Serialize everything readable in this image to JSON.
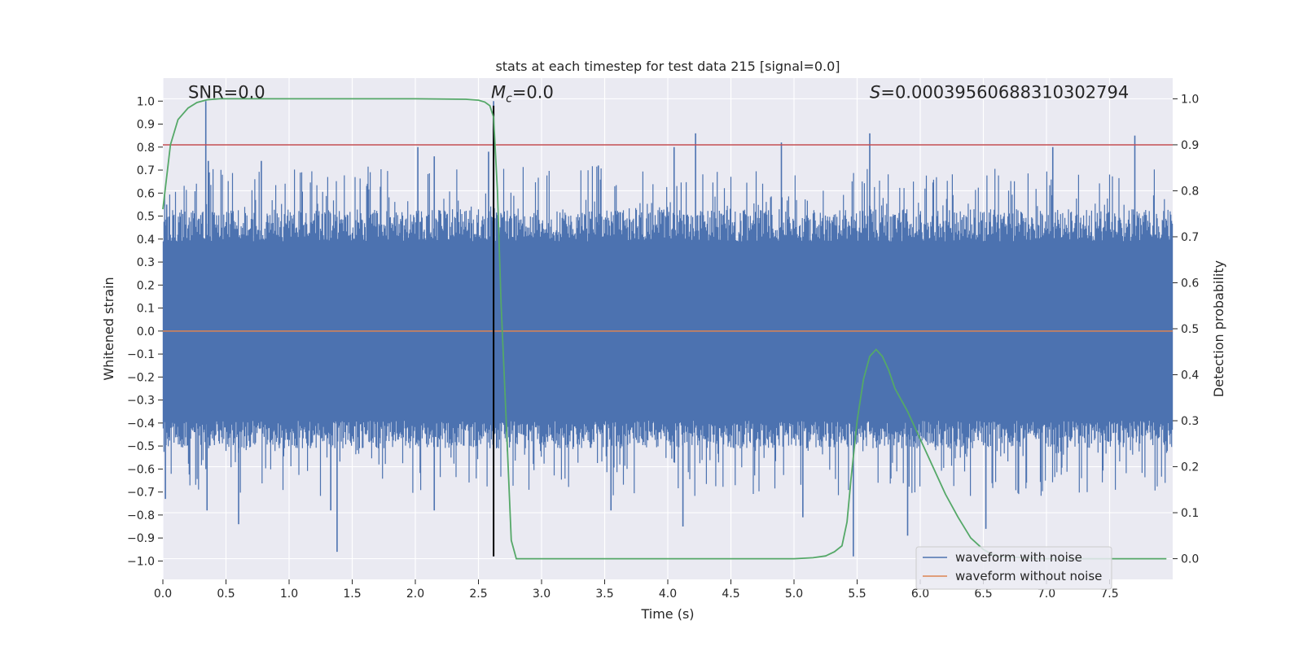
{
  "chart_data": {
    "type": "line",
    "title": "stats at each timestep for test data 215 [signal=0.0]",
    "xlabel": "Time (s)",
    "ylabel": "Whitened strain",
    "y2label": "Detection probability",
    "xlim": [
      0.0,
      8.0
    ],
    "ylim": [
      -1.08,
      1.1
    ],
    "y2lim": [
      -0.045,
      1.045
    ],
    "xticks": [
      0.0,
      0.5,
      1.0,
      1.5,
      2.0,
      2.5,
      3.0,
      3.5,
      4.0,
      4.5,
      5.0,
      5.5,
      6.0,
      6.5,
      7.0,
      7.5
    ],
    "xtick_labels": [
      "0.0",
      "0.5",
      "1.0",
      "1.5",
      "2.0",
      "2.5",
      "3.0",
      "3.5",
      "4.0",
      "4.5",
      "5.0",
      "5.5",
      "6.0",
      "6.5",
      "7.0",
      "7.5"
    ],
    "yticks": [
      1.0,
      0.9,
      0.8,
      0.7,
      0.6,
      0.5,
      0.4,
      0.3,
      0.2,
      0.1,
      0.0,
      -0.1,
      -0.2,
      -0.3,
      -0.4,
      -0.5,
      -0.6,
      -0.7,
      -0.8,
      -0.9,
      -1.0
    ],
    "ytick_labels": [
      "1.0",
      "0.9",
      "0.8",
      "0.7",
      "0.6",
      "0.5",
      "0.4",
      "0.3",
      "0.2",
      "0.1",
      "0.0",
      "−0.1",
      "−0.2",
      "−0.3",
      "−0.4",
      "−0.5",
      "−0.6",
      "−0.7",
      "−0.8",
      "−0.9",
      "−1.0"
    ],
    "y2ticks": [
      1.0,
      0.9,
      0.8,
      0.7,
      0.6,
      0.5,
      0.4,
      0.3,
      0.2,
      0.1,
      0.0
    ],
    "y2tick_labels": [
      "1.0",
      "0.9",
      "0.8",
      "0.7",
      "0.6",
      "0.5",
      "0.4",
      "0.3",
      "0.2",
      "0.1",
      "0.0"
    ],
    "grid": true,
    "legend_position": "lower-right",
    "series": [
      {
        "name": "waveform with noise",
        "axis": "left",
        "color": "#4c72b0",
        "style": "noise-band",
        "dense_band": [
          -0.39,
          0.39
        ],
        "peaks": [
          {
            "x": 0.34,
            "y": 1.0
          },
          {
            "x": 0.36,
            "y": 0.74
          },
          {
            "x": 0.78,
            "y": 0.74
          },
          {
            "x": 2.02,
            "y": 0.8
          },
          {
            "x": 2.15,
            "y": 0.76
          },
          {
            "x": 2.58,
            "y": 0.78
          },
          {
            "x": 2.62,
            "y": 1.0
          },
          {
            "x": 3.45,
            "y": 0.72
          },
          {
            "x": 4.05,
            "y": 0.8
          },
          {
            "x": 4.22,
            "y": 0.86
          },
          {
            "x": 4.9,
            "y": 0.82
          },
          {
            "x": 5.6,
            "y": 0.86
          },
          {
            "x": 7.05,
            "y": 0.8
          },
          {
            "x": 7.7,
            "y": 0.85
          },
          {
            "x": 0.03,
            "y": 0.55
          },
          {
            "x": 0.6,
            "y": -0.84
          },
          {
            "x": 0.35,
            "y": -0.78
          },
          {
            "x": 1.38,
            "y": -0.96
          },
          {
            "x": 1.33,
            "y": -0.78
          },
          {
            "x": 2.15,
            "y": -0.78
          },
          {
            "x": 4.12,
            "y": -0.85
          },
          {
            "x": 3.55,
            "y": -0.78
          },
          {
            "x": 5.07,
            "y": -0.81
          },
          {
            "x": 5.47,
            "y": -0.98
          },
          {
            "x": 5.9,
            "y": -0.89
          },
          {
            "x": 6.52,
            "y": -0.86
          },
          {
            "x": 0.02,
            "y": -0.73
          }
        ]
      },
      {
        "name": "waveform without noise",
        "axis": "left",
        "color": "#dd8452",
        "x": [
          0.0,
          8.0
        ],
        "values": [
          0.0,
          0.0
        ]
      },
      {
        "name": "detection probability",
        "axis": "right",
        "color": "#55a868",
        "x": [
          0.0,
          0.06,
          0.12,
          0.2,
          0.27,
          0.35,
          0.45,
          0.6,
          1.0,
          2.0,
          2.4,
          2.5,
          2.55,
          2.59,
          2.62,
          2.65,
          2.68,
          2.72,
          2.76,
          2.8,
          2.85,
          3.0,
          4.0,
          5.0,
          5.15,
          5.25,
          5.32,
          5.38,
          5.42,
          5.45,
          5.5,
          5.55,
          5.6,
          5.65,
          5.7,
          5.75,
          5.8,
          5.9,
          6.0,
          6.1,
          6.2,
          6.3,
          6.4,
          6.5,
          6.6,
          7.0,
          7.5,
          7.95
        ],
        "values": [
          0.76,
          0.9,
          0.955,
          0.98,
          0.992,
          0.998,
          1.0,
          1.0,
          1.0,
          1.0,
          0.999,
          0.997,
          0.993,
          0.985,
          0.96,
          0.8,
          0.55,
          0.3,
          0.04,
          0.0,
          0.0,
          0.0,
          0.0,
          0.0,
          0.002,
          0.006,
          0.015,
          0.028,
          0.08,
          0.17,
          0.3,
          0.39,
          0.44,
          0.455,
          0.44,
          0.41,
          0.37,
          0.32,
          0.26,
          0.2,
          0.14,
          0.09,
          0.045,
          0.02,
          0.005,
          0.0,
          0.0,
          0.0
        ]
      }
    ],
    "reference_lines": [
      {
        "name": "threshold",
        "axis": "right",
        "y": 0.9,
        "color": "#c44e52"
      },
      {
        "name": "peak-time",
        "axis": "left",
        "x": 2.62,
        "y_range": [
          -0.98,
          0.98
        ],
        "color": "#000000"
      }
    ],
    "annotations": [
      {
        "name": "snr",
        "text": "SNR=0.0",
        "x": 0.2,
        "y": 1.02
      },
      {
        "name": "mc",
        "prefix": "M",
        "subscript": "c",
        "text": "=0.0",
        "x": 2.6,
        "y": 1.02
      },
      {
        "name": "s",
        "prefix": "S",
        "text": "=0.00039560688310302794",
        "x": 5.6,
        "y": 1.02
      }
    ],
    "legend": [
      {
        "label": "waveform with noise",
        "color": "#4c72b0"
      },
      {
        "label": "waveform without noise",
        "color": "#dd8452"
      }
    ]
  }
}
